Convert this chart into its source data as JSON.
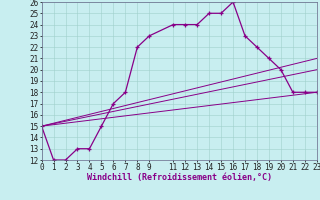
{
  "xlabel": "Windchill (Refroidissement éolien,°C)",
  "bg_color": "#c8eef0",
  "grid_color": "#a0d0cc",
  "line_color": "#880088",
  "axis_bg": "#c8eef0",
  "xmin": 0,
  "xmax": 23,
  "ymin": 12,
  "ymax": 26,
  "main_series": {
    "x": [
      0,
      1,
      2,
      3,
      4,
      5,
      6,
      7,
      8,
      9,
      11,
      12,
      13,
      14,
      15,
      16,
      17,
      18,
      19,
      20,
      21,
      22,
      23
    ],
    "y": [
      15,
      12,
      12,
      13,
      13,
      15,
      17,
      18,
      22,
      23,
      24,
      24,
      24,
      25,
      25,
      26,
      23,
      22,
      21,
      20,
      18,
      18,
      18
    ]
  },
  "straight_lines": [
    {
      "x": [
        0,
        23
      ],
      "y": [
        15,
        21
      ]
    },
    {
      "x": [
        0,
        23
      ],
      "y": [
        15,
        20
      ]
    },
    {
      "x": [
        0,
        23
      ],
      "y": [
        15,
        18
      ]
    }
  ],
  "yticks": [
    12,
    13,
    14,
    15,
    16,
    17,
    18,
    19,
    20,
    21,
    22,
    23,
    24,
    25,
    26
  ],
  "xticks": [
    0,
    1,
    2,
    3,
    4,
    5,
    6,
    7,
    8,
    9,
    11,
    12,
    13,
    14,
    15,
    16,
    17,
    18,
    19,
    20,
    21,
    22,
    23
  ],
  "tick_fontsize": 5.5,
  "xlabel_fontsize": 6,
  "xlabel_color": "#880088"
}
